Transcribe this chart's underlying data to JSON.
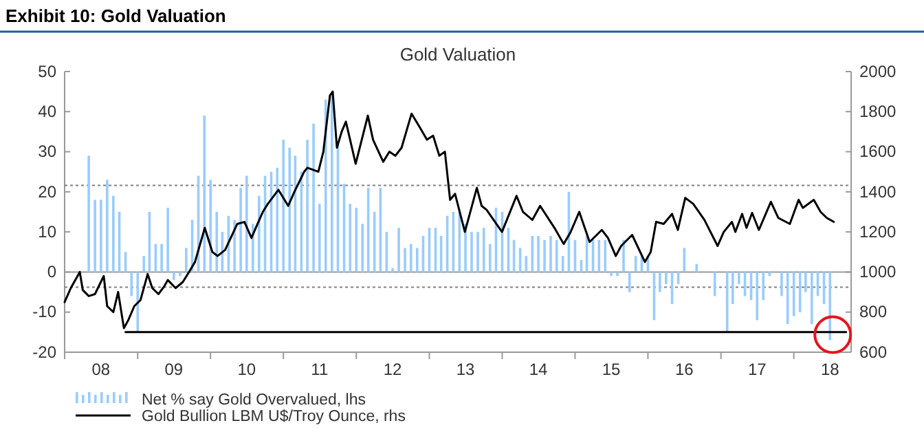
{
  "chart_data": {
    "type": "bar",
    "title": "Exhibit 10: Gold Valuation",
    "subtitle": "Gold Valuation",
    "xlim": [
      "2008-01-01",
      "2018-10-15"
    ],
    "xticks": [
      {
        "value": "2008-01-01",
        "label": null
      },
      {
        "value": "2008-07-01",
        "label": "08"
      },
      {
        "value": "2009-01-01",
        "label": null
      },
      {
        "value": "2009-07-01",
        "label": "09"
      },
      {
        "value": "2010-01-01",
        "label": null
      },
      {
        "value": "2010-07-01",
        "label": "10"
      },
      {
        "value": "2011-01-01",
        "label": null
      },
      {
        "value": "2011-07-01",
        "label": "11"
      },
      {
        "value": "2012-01-01",
        "label": null
      },
      {
        "value": "2012-07-01",
        "label": "12"
      },
      {
        "value": "2013-01-01",
        "label": null
      },
      {
        "value": "2013-07-01",
        "label": "13"
      },
      {
        "value": "2014-01-01",
        "label": null
      },
      {
        "value": "2014-07-01",
        "label": "14"
      },
      {
        "value": "2015-01-01",
        "label": null
      },
      {
        "value": "2015-07-01",
        "label": "15"
      },
      {
        "value": "2016-01-01",
        "label": null
      },
      {
        "value": "2016-07-01",
        "label": "16"
      },
      {
        "value": "2017-01-01",
        "label": null
      },
      {
        "value": "2017-07-01",
        "label": "17"
      },
      {
        "value": "2018-01-01",
        "label": null
      },
      {
        "value": "2018-07-01",
        "label": "18"
      }
    ],
    "ylim": [
      -20,
      50
    ],
    "yticks": [
      -20,
      -10,
      0,
      10,
      20,
      30,
      40,
      50
    ],
    "y2lim": [
      600,
      2000
    ],
    "y2ticks": [
      600,
      800,
      1000,
      1200,
      1400,
      1600,
      1800,
      2000
    ],
    "legend": "bottom left",
    "ref_lines": [
      {
        "axis": "y",
        "value": 21.6,
        "color": "#808080",
        "line_style": "dotted"
      },
      {
        "axis": "y",
        "value": -3.8,
        "color": "#808080",
        "line_style": "dotted"
      }
    ],
    "series": [
      {
        "name": "Net % say Gold Overvalued, lhs",
        "color": "#99ccff",
        "x": [
          "2008-05",
          "2008-06",
          "2008-07",
          "2008-08",
          "2008-09",
          "2008-10",
          "2008-11",
          "2008-12",
          "2009-01",
          "2009-02",
          "2009-03",
          "2009-04",
          "2009-05",
          "2009-06",
          "2009-07",
          "2009-08",
          "2009-09",
          "2009-10",
          "2009-11",
          "2009-12",
          "2010-01",
          "2010-02",
          "2010-03",
          "2010-04",
          "2010-05",
          "2010-06",
          "2010-07",
          "2010-08",
          "2010-09",
          "2010-10",
          "2010-11",
          "2010-12",
          "2011-01",
          "2011-02",
          "2011-03",
          "2011-04",
          "2011-05",
          "2011-06",
          "2011-07",
          "2011-08",
          "2011-09",
          "2011-10",
          "2011-11",
          "2011-12",
          "2012-01",
          "2012-02",
          "2012-03",
          "2012-04",
          "2012-05",
          "2012-06",
          "2012-07",
          "2012-08",
          "2012-09",
          "2012-10",
          "2012-11",
          "2012-12",
          "2013-01",
          "2013-02",
          "2013-03",
          "2013-04",
          "2013-05",
          "2013-06",
          "2013-07",
          "2013-08",
          "2013-09",
          "2013-10",
          "2013-11",
          "2013-12",
          "2014-01",
          "2014-02",
          "2014-03",
          "2014-04",
          "2014-05",
          "2014-06",
          "2014-07",
          "2014-08",
          "2014-09",
          "2014-10",
          "2014-11",
          "2014-12",
          "2015-01",
          "2015-02",
          "2015-03",
          "2015-04",
          "2015-05",
          "2015-06",
          "2015-07",
          "2015-08",
          "2015-09",
          "2015-10",
          "2015-11",
          "2015-12",
          "2016-01",
          "2016-02",
          "2016-03",
          "2016-04",
          "2016-05",
          "2016-06",
          "2016-07",
          "2016-08",
          "2016-09",
          "2016-10",
          "2016-11",
          "2016-12",
          "2017-01",
          "2017-02",
          "2017-03",
          "2017-04",
          "2017-05",
          "2017-06",
          "2017-07",
          "2017-08",
          "2017-09",
          "2017-10",
          "2017-11",
          "2017-12",
          "2018-01",
          "2018-02",
          "2018-03",
          "2018-04",
          "2018-05",
          "2018-06",
          "2018-07"
        ],
        "values": [
          29,
          18,
          18,
          23,
          19,
          15,
          5,
          -6,
          -15,
          4,
          15,
          7,
          7,
          16,
          -2,
          -1,
          6,
          13,
          24,
          39,
          23,
          15,
          10,
          14,
          13,
          21,
          24,
          12,
          19,
          24,
          25,
          26,
          33,
          31,
          29,
          25,
          33,
          37,
          17,
          43,
          44,
          32,
          22,
          17,
          16,
          12,
          21,
          15,
          21,
          10,
          1,
          11,
          6,
          7,
          6,
          9,
          11,
          11,
          9,
          14,
          15,
          15,
          12,
          10,
          10,
          11,
          7,
          16,
          15,
          11,
          8,
          6,
          4,
          9,
          9,
          8,
          9,
          8,
          4,
          20,
          8,
          3,
          9,
          8,
          8,
          8,
          -1,
          -1,
          8,
          -5,
          4,
          4,
          4,
          -12,
          -5,
          -3,
          -8,
          -3,
          6,
          0,
          2,
          0,
          0,
          -6,
          0,
          -15,
          -8,
          -3,
          -6,
          -7,
          -12,
          -7,
          -1,
          0,
          -6,
          -13,
          -11,
          -10,
          -5,
          -13,
          -6,
          -8,
          -17
        ]
      },
      {
        "name": "Gold Bullion LBM U$/Troy Ounce, rhs",
        "type": "line",
        "axis": "y2",
        "color": "#000000",
        "x": [
          "2008-01-01",
          "2008-02-01",
          "2008-03-17",
          "2008-04-01",
          "2008-05-01",
          "2008-06-01",
          "2008-07-15",
          "2008-08-01",
          "2008-09-01",
          "2008-09-25",
          "2008-10-24",
          "2008-11-15",
          "2008-12-15",
          "2009-01-15",
          "2009-02-20",
          "2009-03-15",
          "2009-04-15",
          "2009-05-15",
          "2009-06-01",
          "2009-07-10",
          "2009-08-15",
          "2009-09-15",
          "2009-10-15",
          "2009-12-03",
          "2010-01-10",
          "2010-02-05",
          "2010-03-15",
          "2010-05-15",
          "2010-06-20",
          "2010-07-25",
          "2010-08-20",
          "2010-09-20",
          "2010-10-15",
          "2010-12-07",
          "2011-01-25",
          "2011-02-25",
          "2011-04-15",
          "2011-05-01",
          "2011-06-25",
          "2011-07-20",
          "2011-08-22",
          "2011-09-05",
          "2011-09-26",
          "2011-10-20",
          "2011-11-10",
          "2011-12-29",
          "2012-02-28",
          "2012-03-25",
          "2012-05-15",
          "2012-06-15",
          "2012-07-15",
          "2012-08-15",
          "2012-10-04",
          "2012-11-15",
          "2012-12-20",
          "2013-01-20",
          "2013-02-20",
          "2013-03-20",
          "2013-04-15",
          "2013-05-10",
          "2013-06-28",
          "2013-08-27",
          "2013-09-20",
          "2013-10-15",
          "2013-12-31",
          "2014-03-14",
          "2014-04-15",
          "2014-06-01",
          "2014-07-10",
          "2014-09-20",
          "2014-11-05",
          "2014-12-10",
          "2015-01-22",
          "2015-03-15",
          "2015-05-15",
          "2015-06-15",
          "2015-07-24",
          "2015-08-20",
          "2015-10-14",
          "2015-12-17",
          "2016-01-15",
          "2016-02-11",
          "2016-03-20",
          "2016-05-01",
          "2016-05-30",
          "2016-07-06",
          "2016-08-15",
          "2016-10-10",
          "2016-12-15",
          "2017-01-15",
          "2017-02-25",
          "2017-03-14",
          "2017-04-17",
          "2017-05-09",
          "2017-06-06",
          "2017-07-10",
          "2017-09-08",
          "2017-10-15",
          "2017-12-12",
          "2018-01-25",
          "2018-02-15",
          "2018-04-11",
          "2018-05-15",
          "2018-06-15",
          "2018-07-20"
        ],
        "values": [
          850,
          920,
          1000,
          910,
          880,
          890,
          980,
          830,
          800,
          900,
          720,
          760,
          830,
          860,
          990,
          920,
          890,
          930,
          960,
          920,
          950,
          1000,
          1050,
          1220,
          1100,
          1080,
          1110,
          1240,
          1250,
          1170,
          1230,
          1300,
          1340,
          1410,
          1330,
          1400,
          1500,
          1520,
          1500,
          1600,
          1880,
          1900,
          1620,
          1700,
          1750,
          1540,
          1780,
          1660,
          1550,
          1600,
          1580,
          1620,
          1790,
          1720,
          1660,
          1680,
          1580,
          1600,
          1360,
          1390,
          1200,
          1420,
          1330,
          1310,
          1200,
          1380,
          1300,
          1260,
          1330,
          1220,
          1140,
          1200,
          1300,
          1150,
          1210,
          1170,
          1080,
          1130,
          1185,
          1050,
          1100,
          1250,
          1240,
          1290,
          1210,
          1370,
          1340,
          1260,
          1130,
          1200,
          1250,
          1200,
          1290,
          1220,
          1295,
          1210,
          1350,
          1270,
          1240,
          1360,
          1320,
          1360,
          1300,
          1270,
          1250
        ]
      },
      {
        "type": "line",
        "color": "#000000",
        "x": [
          "2008-11-01",
          "2018-09-20"
        ],
        "values": [
          -15,
          -15
        ]
      }
    ]
  }
}
